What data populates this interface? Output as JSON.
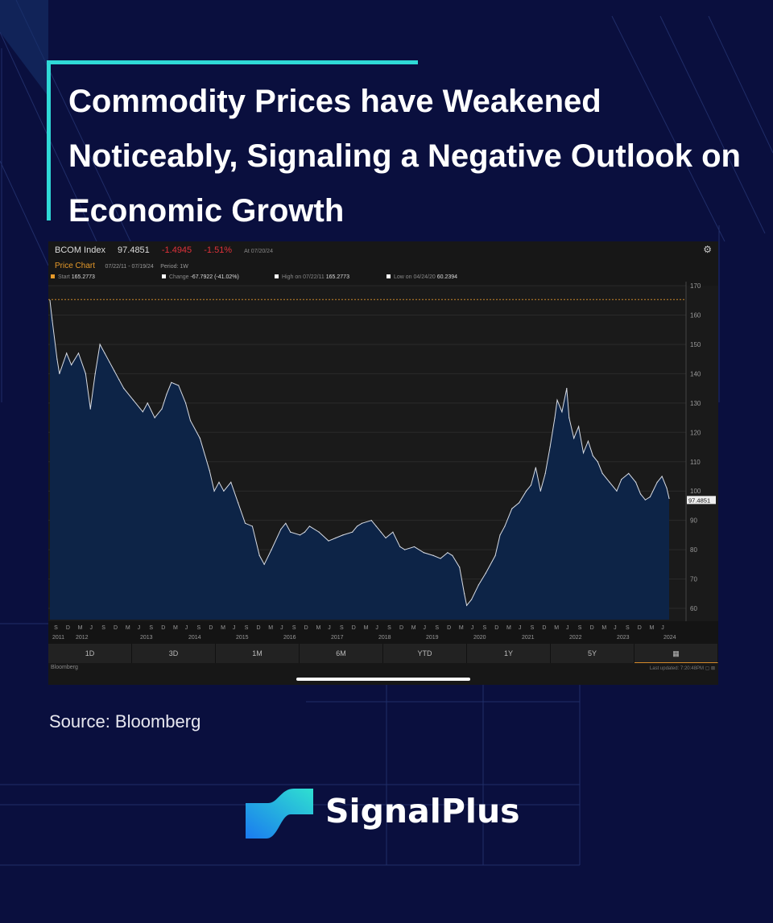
{
  "title": "Commodity Prices have Weakened Noticeably, Signaling a Negative Outlook on Economic Growth",
  "terminal": {
    "ticker": "BCOM Index",
    "last": "97.4851",
    "change": "-1.4945",
    "change_pct": "-1.51%",
    "as_of": "At 07/20/24",
    "chart_label": "Price Chart",
    "date_range": "07/22/11 - 07/19/24",
    "period": "Period: 1W",
    "stats": [
      {
        "label": "Start",
        "value": "165.2773"
      },
      {
        "label": "Change",
        "value": "-67.7922 (-41.02%)"
      },
      {
        "label": "High on 07/22/11",
        "value": "165.2773"
      },
      {
        "label": "Low on 04/24/20",
        "value": "60.2394"
      }
    ],
    "tabs": [
      "1D",
      "3D",
      "1M",
      "6M",
      "YTD",
      "1Y",
      "5Y"
    ],
    "calendar_icon": "calendar-icon",
    "footer_left": "Bloomberg",
    "footer_right": "Last updated: 7:20:48PM",
    "accent": "#e69a2a",
    "negative": "#e0323a"
  },
  "chart_data": {
    "type": "area",
    "series_name": "BCOM Index",
    "ylim": [
      55,
      170
    ],
    "yticks": [
      60,
      70,
      80,
      90,
      100,
      110,
      120,
      130,
      140,
      150,
      160,
      170
    ],
    "start_reference": 165.2773,
    "last_value_label": "97.4851",
    "x_month_letters": [
      "S",
      "D",
      "M",
      "J",
      "S",
      "D",
      "M",
      "J",
      "S",
      "D",
      "M",
      "J",
      "S",
      "D",
      "M",
      "J",
      "S",
      "D",
      "M",
      "J",
      "S",
      "D",
      "M",
      "J",
      "S",
      "D",
      "M",
      "J",
      "S",
      "D",
      "M",
      "J",
      "S",
      "D",
      "M",
      "J",
      "S",
      "D",
      "M",
      "J",
      "S",
      "D",
      "M",
      "J",
      "S",
      "D",
      "M",
      "J",
      "S",
      "D",
      "M",
      "J"
    ],
    "x_year_labels": [
      "2011",
      "2012",
      "2013",
      "2014",
      "2015",
      "2016",
      "2017",
      "2018",
      "2019",
      "2020",
      "2021",
      "2022",
      "2023",
      "2024"
    ],
    "x": [
      2011.55,
      2011.6,
      2011.7,
      2011.75,
      2011.9,
      2012.0,
      2012.15,
      2012.3,
      2012.4,
      2012.5,
      2012.6,
      2012.7,
      2012.8,
      2012.9,
      2013.0,
      2013.1,
      2013.3,
      2013.5,
      2013.6,
      2013.75,
      2013.9,
      2014.0,
      2014.1,
      2014.25,
      2014.4,
      2014.5,
      2014.7,
      2014.9,
      2015.0,
      2015.1,
      2015.2,
      2015.35,
      2015.5,
      2015.65,
      2015.8,
      2015.95,
      2016.05,
      2016.2,
      2016.4,
      2016.5,
      2016.6,
      2016.8,
      2016.9,
      2017.0,
      2017.2,
      2017.4,
      2017.55,
      2017.7,
      2017.9,
      2018.0,
      2018.1,
      2018.3,
      2018.4,
      2018.5,
      2018.6,
      2018.75,
      2018.9,
      2019.0,
      2019.2,
      2019.4,
      2019.6,
      2019.75,
      2019.9,
      2020.0,
      2020.15,
      2020.25,
      2020.3,
      2020.4,
      2020.55,
      2020.7,
      2020.9,
      2021.0,
      2021.1,
      2021.25,
      2021.4,
      2021.55,
      2021.65,
      2021.75,
      2021.85,
      2021.95,
      2022.05,
      2022.15,
      2022.2,
      2022.3,
      2022.4,
      2022.45,
      2022.55,
      2022.65,
      2022.75,
      2022.85,
      2022.95,
      2023.05,
      2023.15,
      2023.3,
      2023.45,
      2023.55,
      2023.7,
      2023.85,
      2023.95,
      2024.05,
      2024.15,
      2024.3,
      2024.4,
      2024.5,
      2024.55
    ],
    "values": [
      165,
      158,
      145,
      140,
      147,
      143,
      147,
      140,
      128,
      140,
      150,
      147,
      144,
      141,
      138,
      135,
      131,
      127,
      130,
      125,
      128,
      133,
      137,
      136,
      130,
      124,
      118,
      107,
      100,
      103,
      100,
      103,
      96,
      89,
      88,
      78,
      75,
      80,
      87,
      89,
      86,
      85,
      86,
      88,
      86,
      83,
      84,
      85,
      86,
      88,
      89,
      90,
      88,
      86,
      84,
      86,
      81,
      80,
      81,
      79,
      78,
      77,
      79,
      78,
      74,
      65,
      61,
      63,
      68,
      72,
      78,
      85,
      88,
      94,
      96,
      100,
      102,
      108,
      100,
      106,
      115,
      125,
      131,
      127,
      135,
      125,
      118,
      122,
      113,
      117,
      112,
      110,
      106,
      103,
      100,
      104,
      106,
      103,
      99,
      97,
      98,
      103,
      105,
      101,
      97.49
    ]
  },
  "source": "Source: Bloomberg",
  "brand": "SignalPlus"
}
